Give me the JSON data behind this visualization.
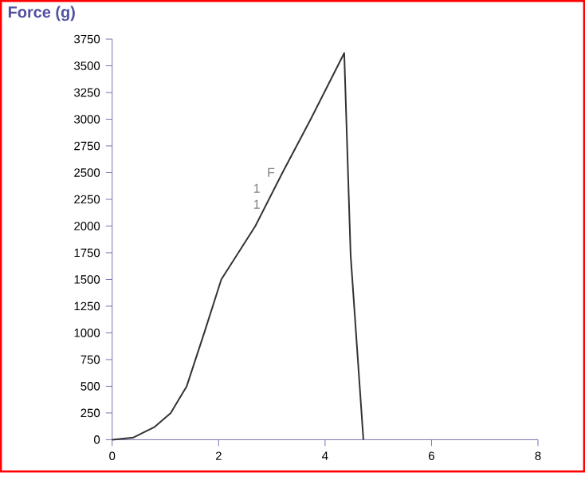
{
  "chart_data": {
    "type": "line",
    "ylabel": "Force (g)",
    "x": [
      0,
      0.4,
      0.8,
      1.1,
      1.4,
      1.73,
      2.05,
      2.37,
      2.69,
      3.2,
      3.73,
      4.36,
      4.48,
      4.72
    ],
    "values": [
      0,
      20,
      120,
      250,
      500,
      1000,
      1500,
      1750,
      2000,
      2500,
      3000,
      3620,
      1730,
      0
    ],
    "color": "#333333",
    "xlim": [
      0,
      8
    ],
    "xticks": [
      0,
      2,
      4,
      6,
      8
    ],
    "ylim": [
      0,
      3750
    ],
    "yticks": [
      0,
      250,
      500,
      750,
      1000,
      1250,
      1500,
      1750,
      2000,
      2250,
      2500,
      2750,
      3000,
      3250,
      3500,
      3750
    ],
    "annotations": [
      "F",
      "1",
      "1"
    ],
    "grid": false
  }
}
